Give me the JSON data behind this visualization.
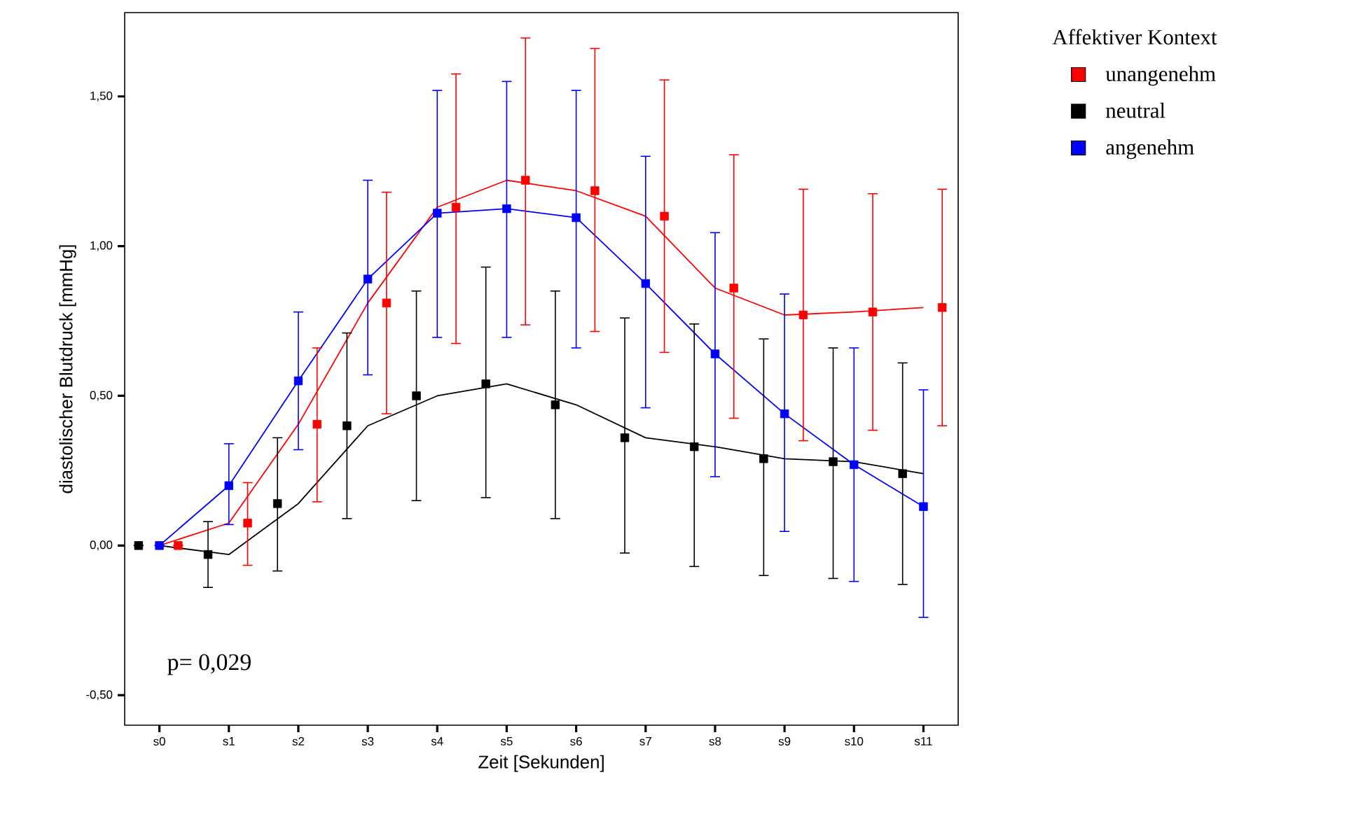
{
  "chart_data": {
    "type": "scatter",
    "xlabel": "Zeit [Sekunden]",
    "ylabel": "diastolischer Blutdruck [mmHg]",
    "legend_title": "Affektiver Kontext",
    "legend": "top right",
    "marker": "square",
    "categories": [
      "s0",
      "s1",
      "s2",
      "s3",
      "s4",
      "s5",
      "s6",
      "s7",
      "s8",
      "s9",
      "s10",
      "s11"
    ],
    "ylim": [
      -0.6,
      1.78
    ],
    "yticks": [
      {
        "value": -0.5,
        "label": "-0,50"
      },
      {
        "value": 0,
        "label": "0,00"
      },
      {
        "value": 0.5,
        "label": "0,50"
      },
      {
        "value": 1,
        "label": "1,00"
      },
      {
        "value": 1.5,
        "label": "1,50"
      }
    ],
    "annotations": [
      "p= 0,029"
    ],
    "series": [
      {
        "type": "line",
        "marker": "none",
        "color": "#ff0000",
        "values": [
          0.0,
          0.075,
          0.405,
          0.81,
          1.13,
          1.22,
          1.185,
          1.1,
          0.86,
          0.77,
          0.78,
          0.795
        ]
      },
      {
        "type": "line",
        "marker": "none",
        "color": "#000000",
        "values": [
          0.0,
          -0.03,
          0.14,
          0.4,
          0.5,
          0.54,
          0.47,
          0.36,
          0.33,
          0.29,
          0.28,
          0.24
        ]
      },
      {
        "type": "line",
        "marker": "none",
        "color": "#0000ff",
        "values": [
          0.0,
          0.2,
          0.55,
          0.89,
          1.11,
          1.125,
          1.095,
          0.875,
          0.64,
          0.44,
          0.27,
          0.13
        ]
      },
      {
        "name": "unangenehm",
        "color": "#ff0000",
        "values": [
          0.0,
          0.075,
          0.405,
          0.81,
          1.13,
          1.22,
          1.185,
          1.1,
          0.86,
          0.77,
          0.78,
          0.795
        ],
        "errors": [
          null,
          [
            -0.066,
            0.21
          ],
          [
            0.146,
            0.66
          ],
          [
            0.44,
            1.18
          ],
          [
            0.675,
            1.575
          ],
          [
            0.737,
            1.695
          ],
          [
            0.715,
            1.66
          ],
          [
            0.645,
            1.555
          ],
          [
            0.425,
            1.305
          ],
          [
            0.35,
            1.19
          ],
          [
            0.385,
            1.175
          ],
          [
            0.4,
            1.19
          ]
        ]
      },
      {
        "name": "neutral",
        "color": "#000000",
        "values": [
          0.0,
          -0.03,
          0.14,
          0.4,
          0.5,
          0.54,
          0.47,
          0.36,
          0.33,
          0.29,
          0.28,
          0.24
        ],
        "errors": [
          null,
          [
            -0.14,
            0.08
          ],
          [
            -0.085,
            0.36
          ],
          [
            0.09,
            0.71
          ],
          [
            0.15,
            0.85
          ],
          [
            0.16,
            0.93
          ],
          [
            0.09,
            0.85
          ],
          [
            -0.025,
            0.76
          ],
          [
            -0.07,
            0.74
          ],
          [
            -0.1,
            0.69
          ],
          [
            -0.11,
            0.66
          ],
          [
            -0.13,
            0.61
          ]
        ]
      },
      {
        "name": "angenehm",
        "color": "#0000ff",
        "values": [
          0.0,
          0.2,
          0.55,
          0.89,
          1.11,
          1.125,
          1.095,
          0.875,
          0.64,
          0.44,
          0.27,
          0.13
        ],
        "errors": [
          null,
          [
            0.07,
            0.34
          ],
          [
            0.32,
            0.78
          ],
          [
            0.57,
            1.22
          ],
          [
            0.695,
            1.52
          ],
          [
            0.695,
            1.55
          ],
          [
            0.66,
            1.52
          ],
          [
            0.46,
            1.3
          ],
          [
            0.23,
            1.045
          ],
          [
            0.047,
            0.84
          ],
          [
            -0.12,
            0.66
          ],
          [
            -0.24,
            0.52
          ]
        ]
      }
    ]
  }
}
